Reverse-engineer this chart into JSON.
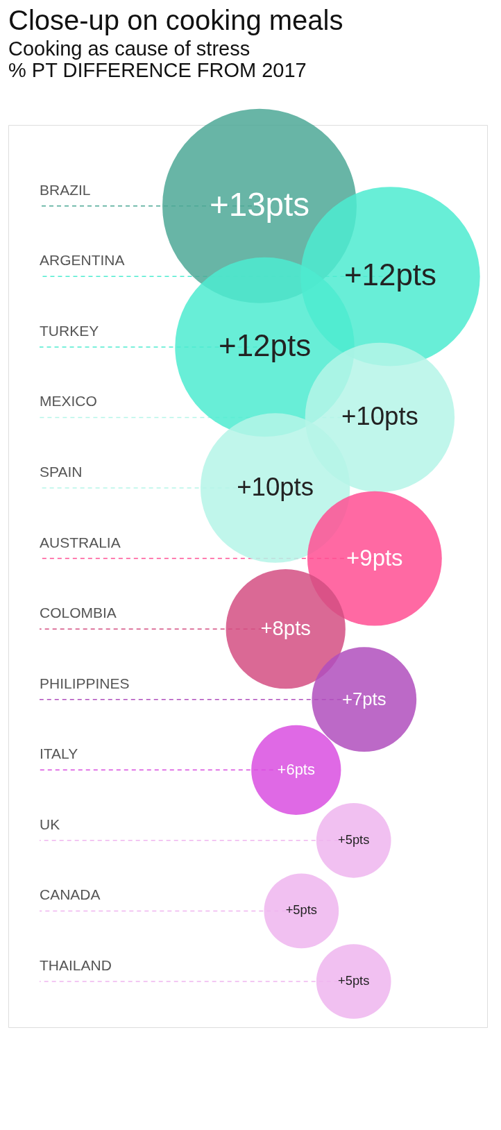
{
  "chart_data": {
    "type": "other",
    "title": "Close-up on cooking meals",
    "subtitle": "Cooking as cause of stress",
    "annotations": [
      "% PT DIFFERENCE FROM 2017"
    ],
    "categories": [
      "BRAZIL",
      "ARGENTINA",
      "TURKEY",
      "MEXICO",
      "SPAIN",
      "AUSTRALIA",
      "COLOMBIA",
      "PHILIPPINES",
      "ITALY",
      "UK",
      "CANADA",
      "THAILAND"
    ],
    "values": [
      13,
      12,
      12,
      10,
      10,
      9,
      8,
      7,
      6,
      5,
      5,
      5
    ],
    "value_labels": [
      "+13pts",
      "+12pts",
      "+12pts",
      "+10pts",
      "+10pts",
      "+9pts",
      "+8pts",
      "+7pts",
      "+6pts",
      "+5pts",
      "+5pts",
      "+5pts"
    ],
    "colors": [
      "#4da896",
      "#4eebd0",
      "#4eebd0",
      "#b5f5e8",
      "#b5f5e8",
      "#ff4f93",
      "#d44f82",
      "#b04fbd",
      "#d94fe0",
      "#efb5ef",
      "#efb5ef",
      "#efb5ef"
    ]
  }
}
